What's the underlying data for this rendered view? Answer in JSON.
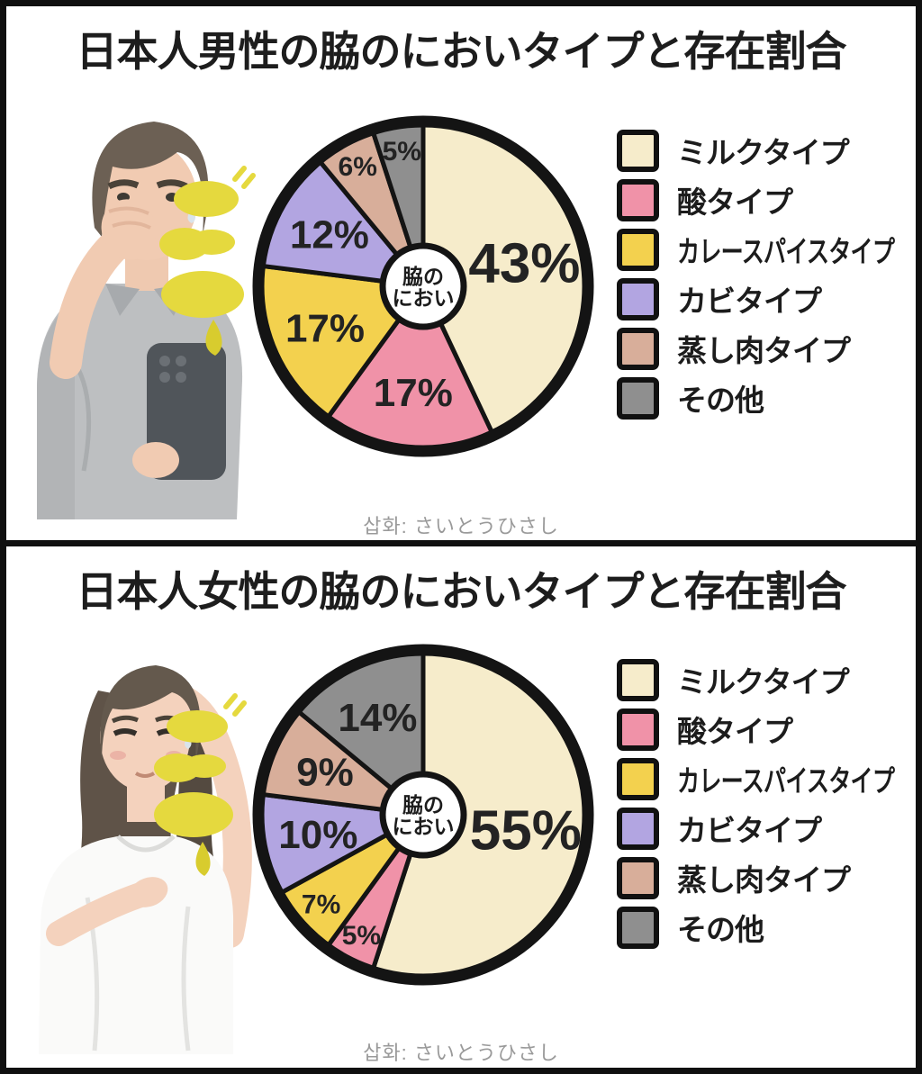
{
  "illustration_credit": "삽화: さいとうひさし",
  "center_label": {
    "line1": "脇の",
    "line2": "におい"
  },
  "legend_items": [
    {
      "label": "ミルクタイプ",
      "color": "#F6ECCB"
    },
    {
      "label": "酸タイプ",
      "color": "#F092A8"
    },
    {
      "label": "カレースパイスタイプ",
      "color": "#F3D14E"
    },
    {
      "label": "カビタイプ",
      "color": "#B2A5E1"
    },
    {
      "label": "蒸し肉タイプ",
      "color": "#D8AE9A"
    },
    {
      "label": "その他",
      "color": "#8F8F8F"
    }
  ],
  "chart_data": [
    {
      "type": "pie",
      "title": "日本人男性の脇のにおいタイプと存在割合",
      "center_label": "脇のにおい",
      "categories": [
        "ミルクタイプ",
        "酸タイプ",
        "カレースパイスタイプ",
        "カビタイプ",
        "蒸し肉タイプ",
        "その他"
      ],
      "values": [
        43,
        17,
        17,
        12,
        6,
        5
      ],
      "labels": [
        "43%",
        "17%",
        "17%",
        "12%",
        "6%",
        "5%"
      ],
      "colors": [
        "#F6ECCB",
        "#F092A8",
        "#F3D14E",
        "#B2A5E1",
        "#D8AE9A",
        "#8F8F8F"
      ],
      "start_angle": "12-oclock",
      "direction": "clockwise",
      "legend_position": "right",
      "outline_color": "#141414"
    },
    {
      "type": "pie",
      "title": "日本人女性の脇のにおいタイプと存在割合",
      "center_label": "脇のにおい",
      "categories": [
        "ミルクタイプ",
        "酸タイプ",
        "カレースパイスタイプ",
        "カビタイプ",
        "蒸し肉タイプ",
        "その他"
      ],
      "values": [
        55,
        5,
        7,
        10,
        9,
        14
      ],
      "labels": [
        "55%",
        "5%",
        "7%",
        "10%",
        "9%",
        "14%"
      ],
      "colors": [
        "#F6ECCB",
        "#F092A8",
        "#F3D14E",
        "#B2A5E1",
        "#D8AE9A",
        "#8F8F8F"
      ],
      "start_angle": "12-oclock",
      "direction": "clockwise",
      "legend_position": "right",
      "outline_color": "#141414"
    }
  ]
}
